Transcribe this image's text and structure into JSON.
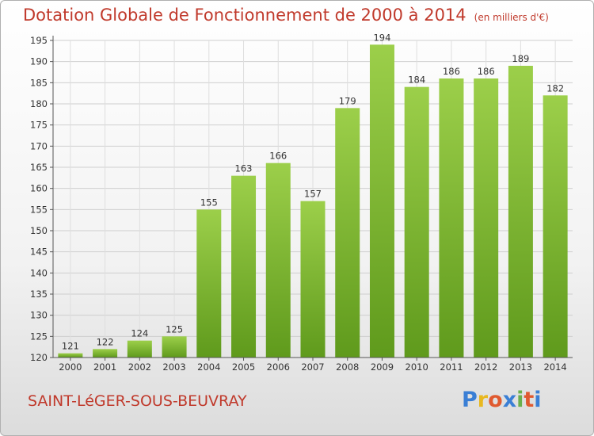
{
  "title": "Dotation Globale de Fonctionnement de 2000 à 2014",
  "unit": "(en milliers d'€)",
  "commune": "SAINT-LéGER-SOUS-BEUVRAY",
  "brand": {
    "letters": [
      "P",
      "r",
      "o",
      "x",
      "i",
      "t",
      "i"
    ],
    "colors": [
      "#3a7fd5",
      "#e8b820",
      "#e05a30",
      "#3a7fd5",
      "#6ab04c",
      "#e05a30",
      "#3a7fd5"
    ]
  },
  "chart_data": {
    "type": "bar",
    "title": "Dotation Globale de Fonctionnement de 2000 à 2014",
    "subtitle": "(en milliers d'€)",
    "categories": [
      "2000",
      "2001",
      "2002",
      "2003",
      "2004",
      "2005",
      "2006",
      "2007",
      "2008",
      "2009",
      "2010",
      "2011",
      "2012",
      "2013",
      "2014"
    ],
    "values": [
      121,
      122,
      124,
      125,
      155,
      163,
      166,
      157,
      179,
      194,
      184,
      186,
      186,
      189,
      182
    ],
    "ylim": [
      120,
      195
    ],
    "yticks": [
      120,
      125,
      130,
      135,
      140,
      145,
      150,
      155,
      160,
      165,
      170,
      175,
      180,
      185,
      190,
      195
    ],
    "grid": true,
    "bar_color": "#7fb832"
  }
}
